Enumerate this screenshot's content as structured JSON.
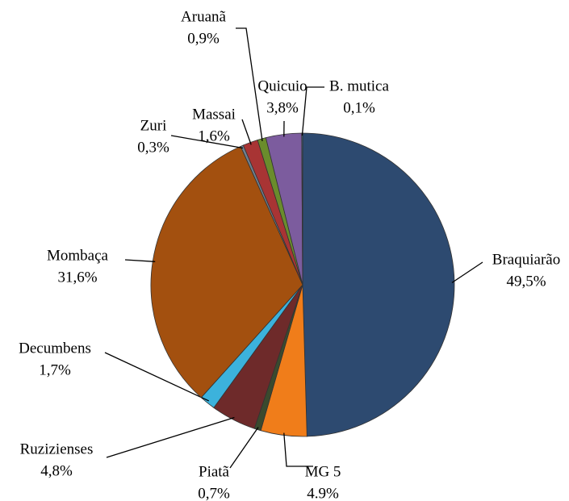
{
  "chart_data": {
    "type": "pie",
    "categories": [
      "Braquiarão",
      "MG 5",
      "Piatã",
      "Ruzizienses",
      "Decumbens",
      "Mombaça",
      "Zuri",
      "Massai",
      "Aruanã",
      "Quicuio",
      "B. mutica"
    ],
    "values": [
      49.5,
      4.9,
      0.7,
      4.8,
      1.7,
      31.6,
      0.3,
      1.6,
      0.9,
      3.8,
      0.1
    ],
    "value_labels": [
      "49,5%",
      "4.9%",
      "0,7%",
      "4,8%",
      "1,7%",
      "31,6%",
      "0,3%",
      "1,6%",
      "0,9%",
      "3,8%",
      "0,1%"
    ],
    "colors": [
      "#2d4a70",
      "#f07d1a",
      "#3a4a2e",
      "#6e2a2a",
      "#3cb2dc",
      "#a3500f",
      "#6f8090",
      "#a83434",
      "#6a8c2c",
      "#7c5c9e",
      "#3c7c9c"
    ]
  }
}
